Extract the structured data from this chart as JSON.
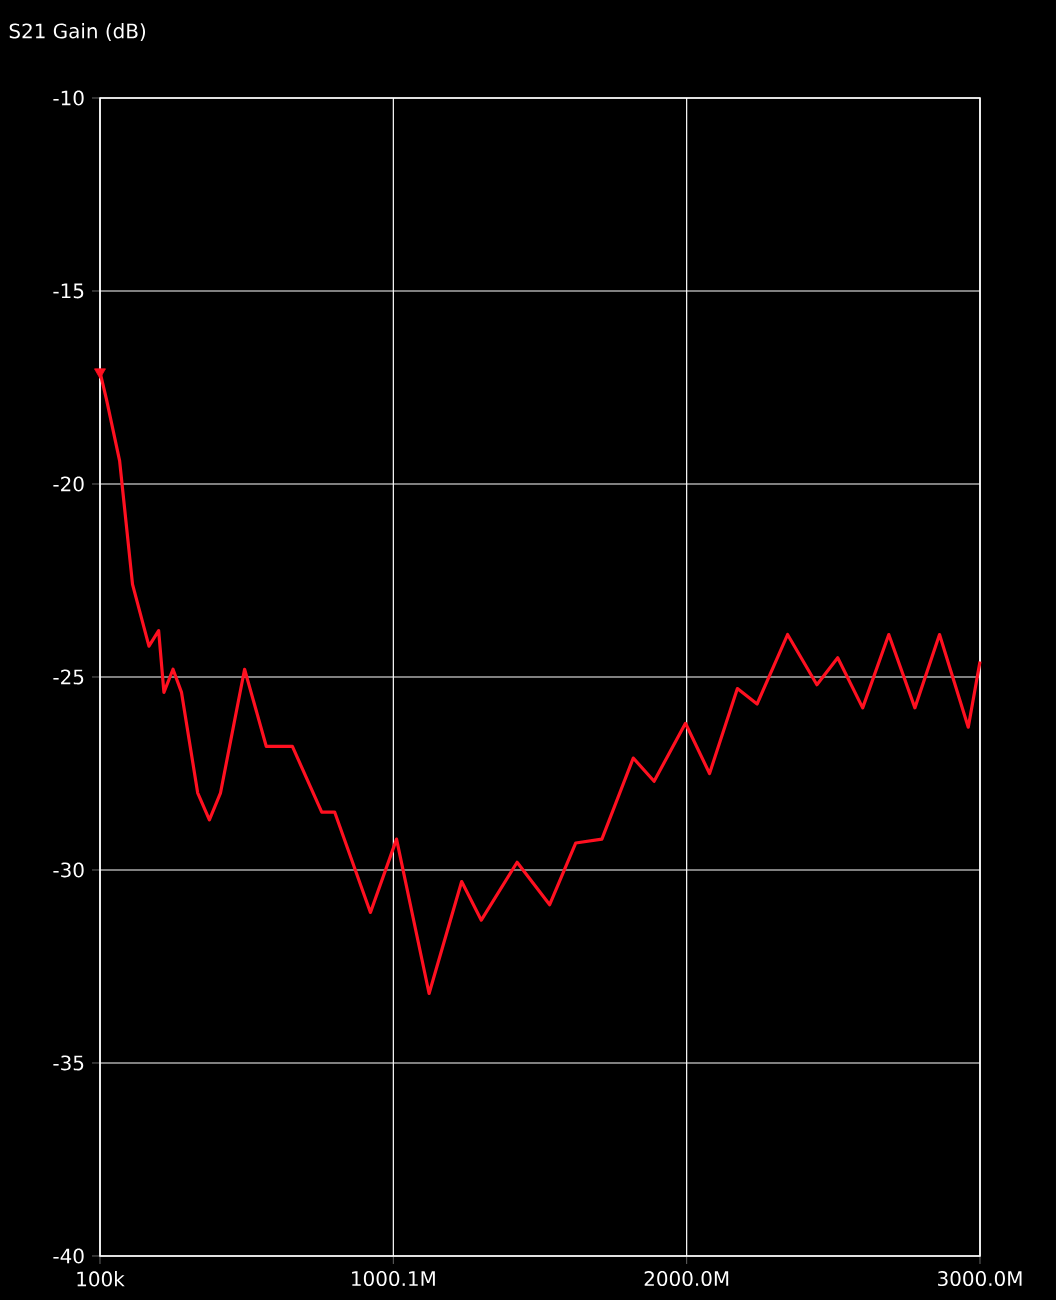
{
  "chart_data": {
    "type": "line",
    "ylabel": "S21 Gain (dB)",
    "xlim": [
      100000,
      3000000000
    ],
    "ylim": [
      -40,
      -10
    ],
    "xticks": [
      {
        "value": 100000,
        "label": "100k"
      },
      {
        "value": 1000100000,
        "label": "1000.1M"
      },
      {
        "value": 2000000000,
        "label": "2000.0M"
      },
      {
        "value": 3000000000,
        "label": "3000.0M"
      }
    ],
    "yticks": [
      -40,
      -35,
      -30,
      -25,
      -20,
      -15,
      -10
    ],
    "grid": true,
    "line_style": "solid",
    "series": [
      {
        "color": "#ff1020",
        "marker": "none",
        "x": [
          100000,
          22000000,
          67000000,
          111000000,
          167000000,
          200000000,
          218000000,
          249000000,
          278000000,
          333000000,
          373000000,
          411000000,
          493000000,
          567000000,
          656000000,
          756000000,
          800000000,
          922000000,
          1011000000,
          1122000000,
          1233000000,
          1300000000,
          1422000000,
          1533000000,
          1622000000,
          1711000000,
          1818000000,
          1889000000,
          1996000000,
          2078000000,
          2173000000,
          2240000000,
          2344000000,
          2444000000,
          2515000000,
          2600000000,
          2689000000,
          2778000000,
          2862000000,
          2960000000,
          3000000000
        ],
        "values": [
          -17.1,
          -17.8,
          -19.4,
          -22.6,
          -24.2,
          -23.8,
          -25.4,
          -24.8,
          -25.4,
          -28.0,
          -28.7,
          -28.0,
          -24.8,
          -26.8,
          -26.8,
          -28.5,
          -28.5,
          -31.1,
          -29.2,
          -33.2,
          -30.3,
          -31.3,
          -29.8,
          -30.9,
          -29.3,
          -29.2,
          -27.1,
          -27.7,
          -26.2,
          -27.5,
          -25.3,
          -25.7,
          -23.9,
          -25.2,
          -24.5,
          -25.8,
          -23.9,
          -25.8,
          -23.9,
          -26.3,
          -24.6
        ]
      },
      {
        "type": "scatter",
        "color": "#ff1020",
        "marker": "triangle",
        "x": [
          100000
        ],
        "values": [
          -17.1
        ]
      }
    ]
  }
}
